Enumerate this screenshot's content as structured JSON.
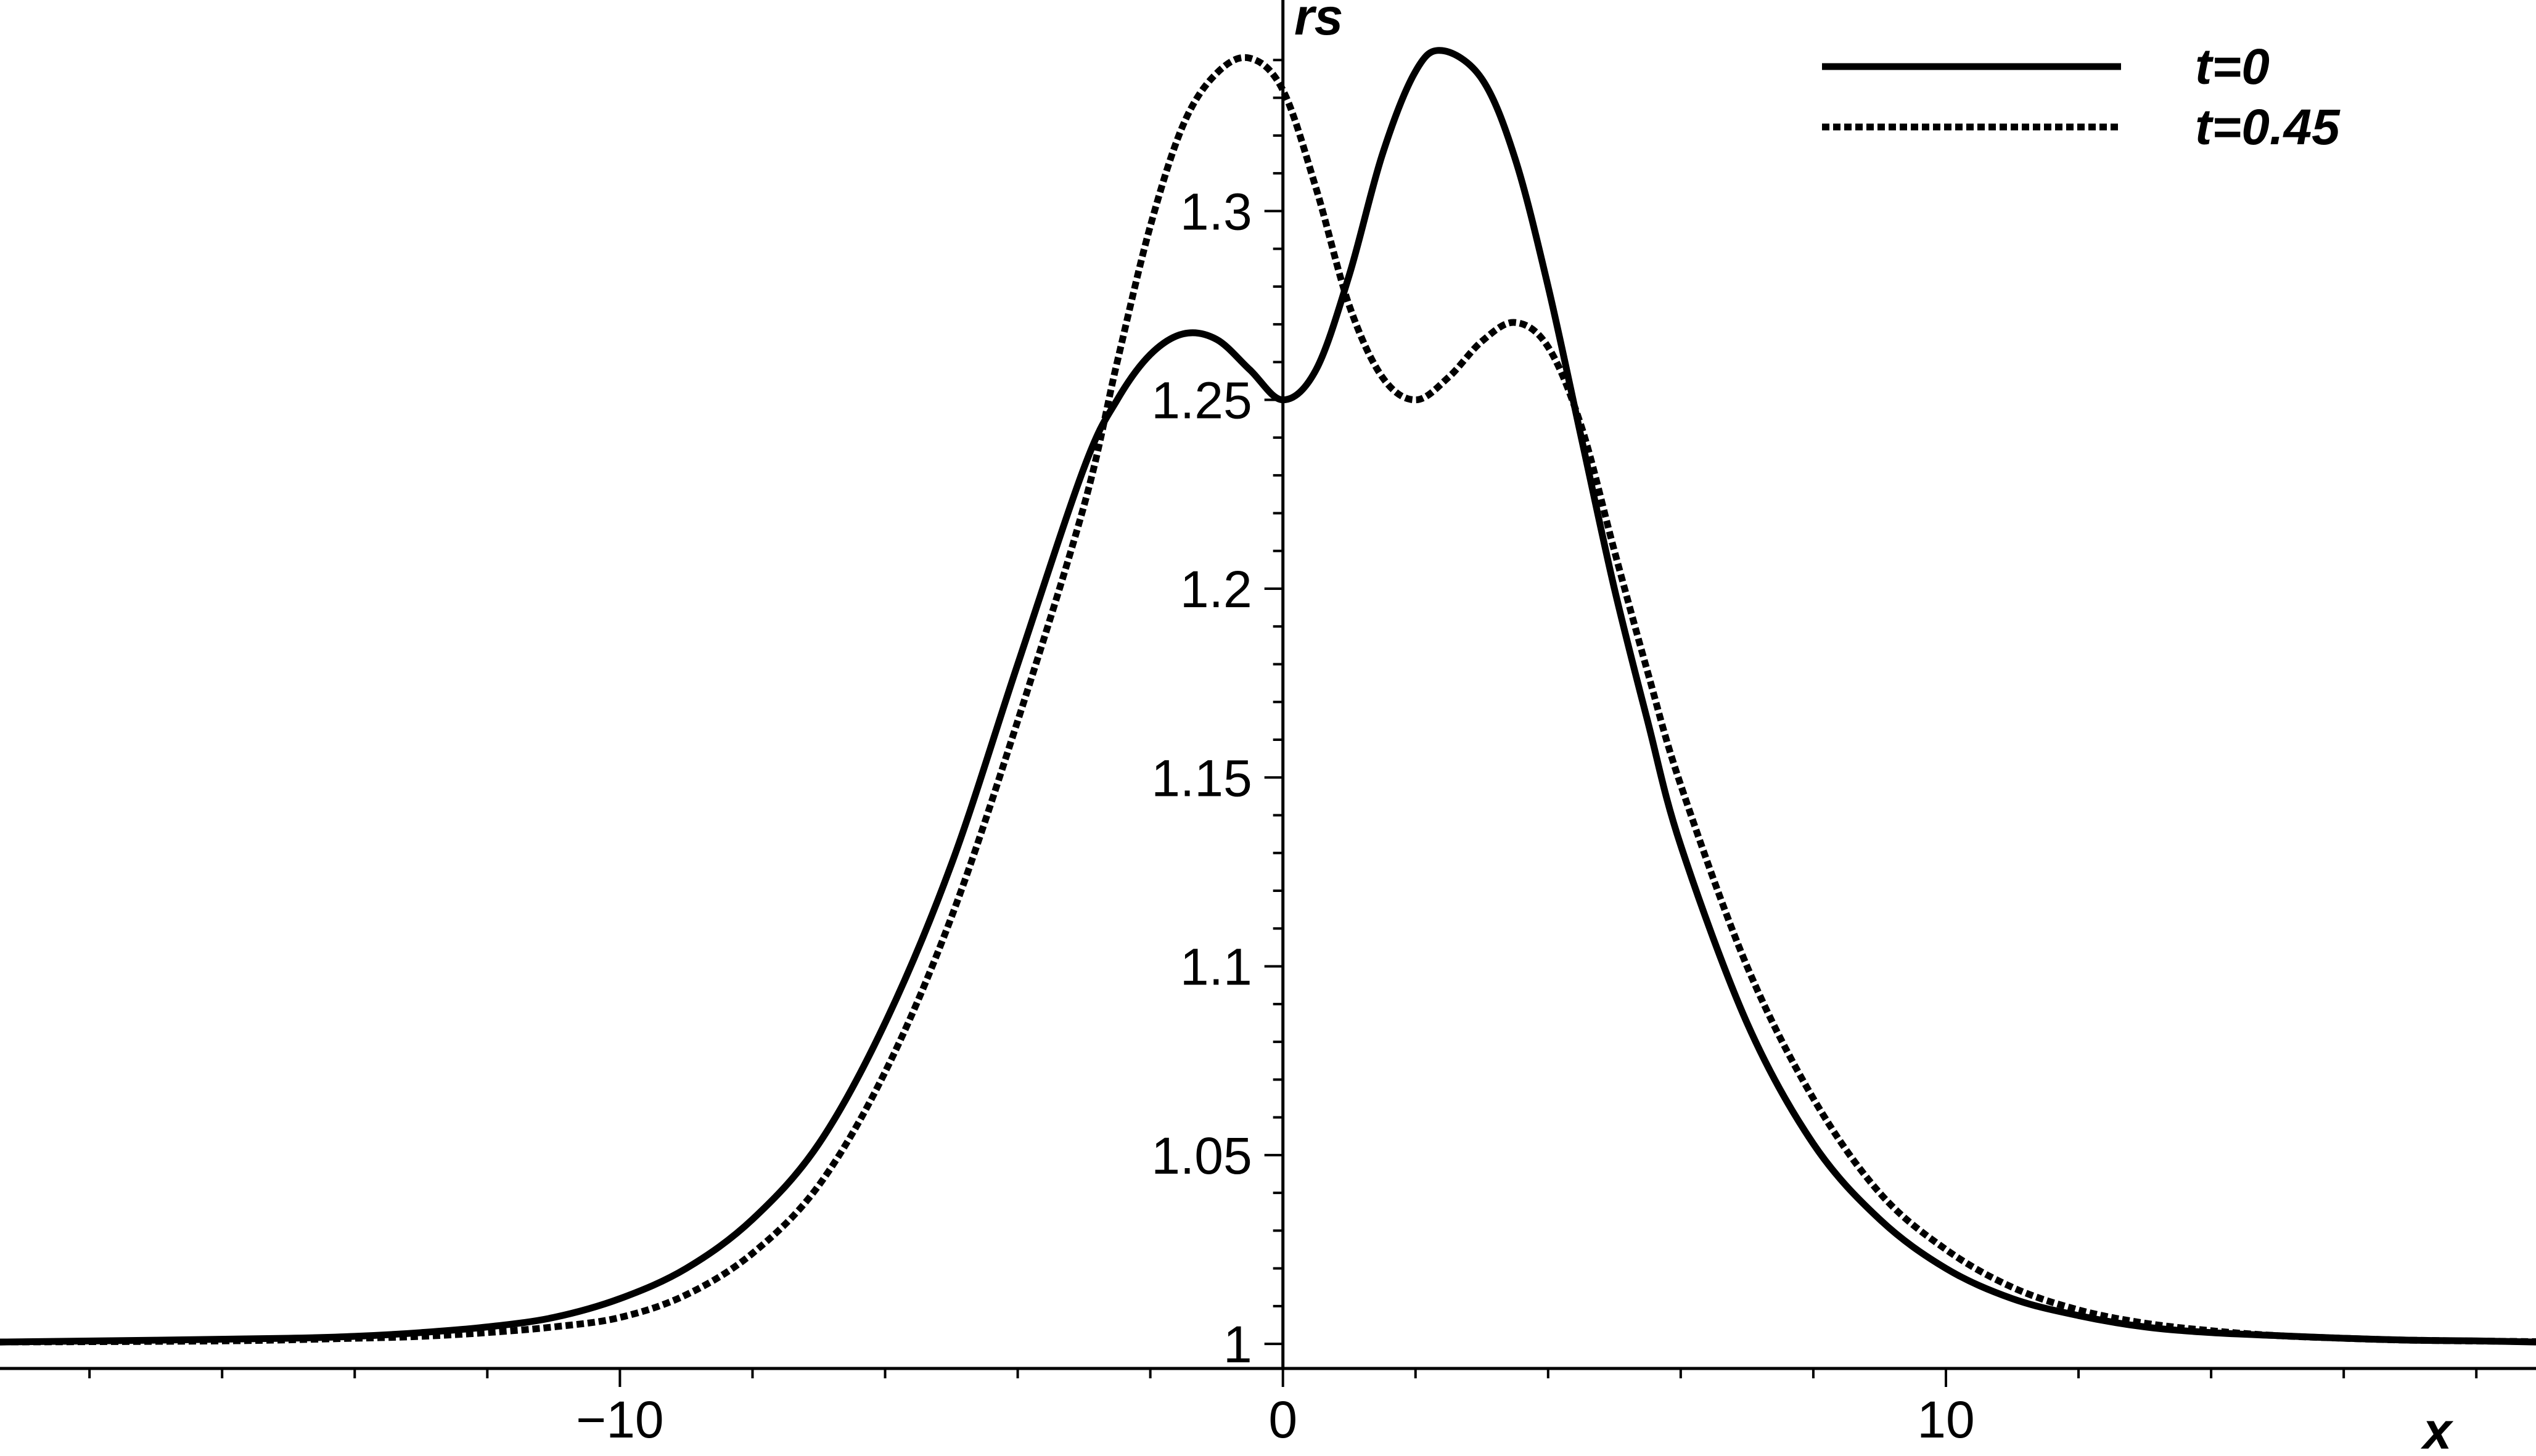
{
  "chart_data": {
    "type": "line",
    "title": "",
    "xlabel": "x",
    "ylabel": "rs",
    "xlim": [
      -19.35,
      18.9
    ],
    "ylim": [
      0.9935,
      1.3425
    ],
    "x_ticks": [
      -10,
      0,
      10
    ],
    "x_tick_labels": [
      "−10",
      "0",
      "10"
    ],
    "y_ticks": [
      1,
      1.05,
      1.1,
      1.15,
      1.2,
      1.25,
      1.3
    ],
    "y_tick_labels": [
      "1",
      "1.05",
      "1.1",
      "1.15",
      "1.2",
      "1.25",
      "1.3"
    ],
    "grid": false,
    "legend_position": "top-right",
    "series": [
      {
        "name": "t=0",
        "style": "solid",
        "color": "#000000",
        "points": [
          [
            -19.35,
            1.0005
          ],
          [
            -17,
            1.001
          ],
          [
            -15,
            1.0015
          ],
          [
            -14,
            1.002
          ],
          [
            -13,
            1.003
          ],
          [
            -12,
            1.0045
          ],
          [
            -11,
            1.007
          ],
          [
            -10,
            1.012
          ],
          [
            -9,
            1.02
          ],
          [
            -8,
            1.033
          ],
          [
            -7,
            1.053
          ],
          [
            -6,
            1.085
          ],
          [
            -5,
            1.127
          ],
          [
            -4,
            1.18
          ],
          [
            -3,
            1.232
          ],
          [
            -2.5,
            1.25
          ],
          [
            -2,
            1.262
          ],
          [
            -1.5,
            1.2675
          ],
          [
            -1,
            1.266
          ],
          [
            -0.5,
            1.258
          ],
          [
            0,
            1.25
          ],
          [
            0.5,
            1.258
          ],
          [
            1,
            1.283
          ],
          [
            1.5,
            1.315
          ],
          [
            2,
            1.337
          ],
          [
            2.4,
            1.3425
          ],
          [
            3,
            1.335
          ],
          [
            3.5,
            1.314
          ],
          [
            4,
            1.28
          ],
          [
            4.5,
            1.24
          ],
          [
            5,
            1.2
          ],
          [
            5.5,
            1.165
          ],
          [
            6,
            1.132
          ],
          [
            7,
            1.085
          ],
          [
            8,
            1.053
          ],
          [
            9,
            1.033
          ],
          [
            10,
            1.02
          ],
          [
            11,
            1.012
          ],
          [
            12,
            1.0075
          ],
          [
            13,
            1.0045
          ],
          [
            14,
            1.003
          ],
          [
            15,
            1.0022
          ],
          [
            16,
            1.0015
          ],
          [
            17,
            1.001
          ],
          [
            18,
            1.0008
          ],
          [
            18.9,
            1.0005
          ]
        ]
      },
      {
        "name": "t=0.45",
        "style": "dashed",
        "color": "#000000",
        "points": [
          [
            -19.35,
            1.0005
          ],
          [
            -16,
            1.0008
          ],
          [
            -14,
            1.0015
          ],
          [
            -13,
            1.002
          ],
          [
            -12,
            1.003
          ],
          [
            -11,
            1.0045
          ],
          [
            -10,
            1.007
          ],
          [
            -9,
            1.013
          ],
          [
            -8,
            1.024
          ],
          [
            -7,
            1.042
          ],
          [
            -6,
            1.072
          ],
          [
            -5,
            1.113
          ],
          [
            -4,
            1.165
          ],
          [
            -3,
            1.222
          ],
          [
            -2.5,
            1.26
          ],
          [
            -2,
            1.296
          ],
          [
            -1.5,
            1.323
          ],
          [
            -1,
            1.3365
          ],
          [
            -0.5,
            1.3405
          ],
          [
            0,
            1.332
          ],
          [
            0.5,
            1.306
          ],
          [
            1,
            1.275
          ],
          [
            1.5,
            1.256
          ],
          [
            2,
            1.25
          ],
          [
            2.5,
            1.256
          ],
          [
            3,
            1.2655
          ],
          [
            3.5,
            1.2705
          ],
          [
            4,
            1.264
          ],
          [
            4.5,
            1.243
          ],
          [
            5,
            1.21
          ],
          [
            5.5,
            1.178
          ],
          [
            6,
            1.148
          ],
          [
            7,
            1.1
          ],
          [
            8,
            1.065
          ],
          [
            9,
            1.04
          ],
          [
            10,
            1.025
          ],
          [
            11,
            1.015
          ],
          [
            12,
            1.009
          ],
          [
            13,
            1.0055
          ],
          [
            14,
            1.0035
          ],
          [
            15,
            1.0022
          ],
          [
            16,
            1.0015
          ],
          [
            17,
            1.001
          ],
          [
            18.9,
            1.0006
          ]
        ]
      }
    ]
  }
}
